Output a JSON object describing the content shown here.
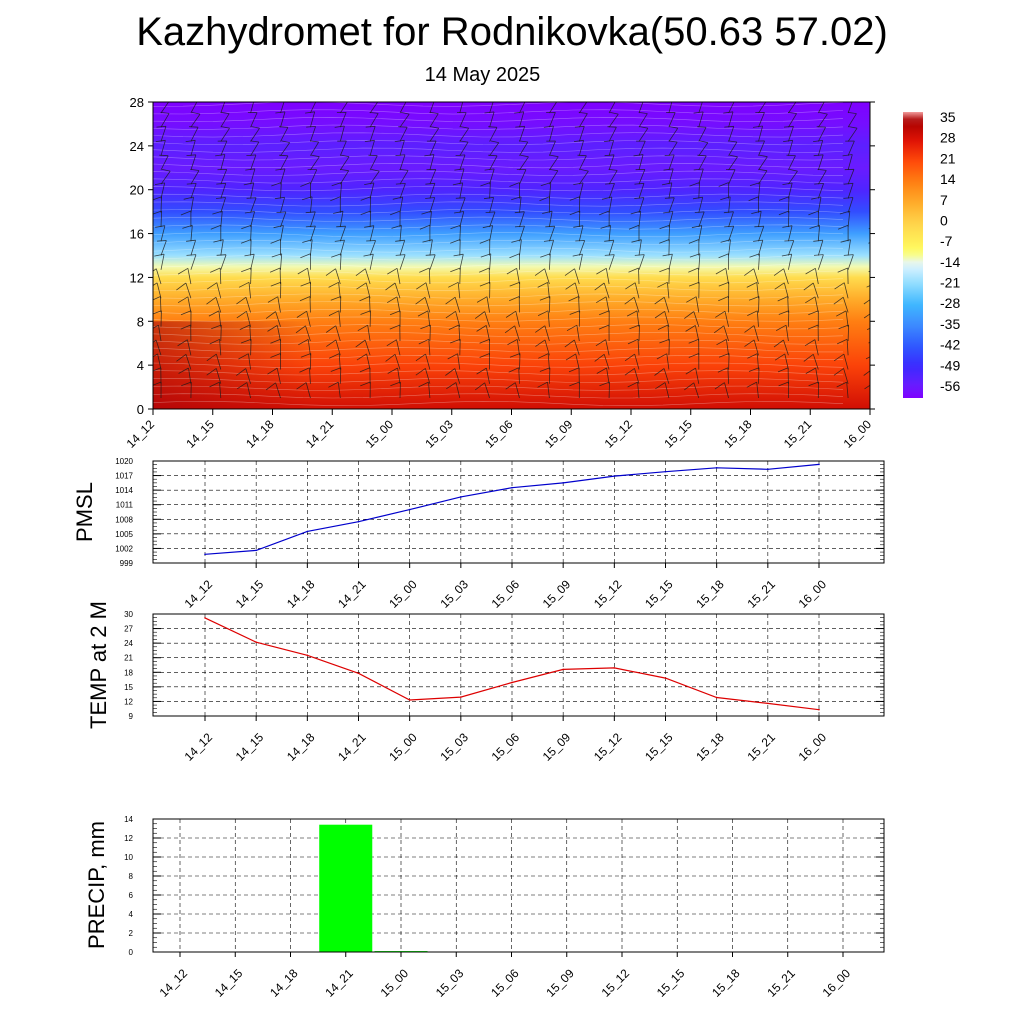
{
  "header": {
    "title": "Kazhydromet for Rodnikovka(50.63 57.02)",
    "date": "14 May 2025"
  },
  "chart_data": [
    {
      "type": "heatmap",
      "title": "Kazhydromet for Rodnikovka(50.63 57.02)",
      "subtitle": "14 May 2025",
      "x_ticks": [
        "14_12",
        "14_15",
        "14_18",
        "14_21",
        "15_00",
        "15_03",
        "15_06",
        "15_09",
        "15_12",
        "15_15",
        "15_18",
        "15_21",
        "16_00"
      ],
      "y_ticks": [
        0,
        4,
        8,
        12,
        16,
        20,
        24,
        28
      ],
      "ylim": [
        0,
        28
      ],
      "colorbar_labels": [
        35,
        28,
        21,
        14,
        7,
        0,
        -7,
        -14,
        -21,
        -28,
        -35,
        -42,
        -49,
        -56
      ],
      "colorbar_range": [
        -60,
        38
      ],
      "level_temperature_profile": [
        {
          "level": 0,
          "value": 30
        },
        {
          "level": 4,
          "value": 22
        },
        {
          "level": 8,
          "value": 14
        },
        {
          "level": 10,
          "value": 7
        },
        {
          "level": 12,
          "value": -2
        },
        {
          "level": 13,
          "value": -12
        },
        {
          "level": 14,
          "value": -20
        },
        {
          "level": 16,
          "value": -32
        },
        {
          "level": 18,
          "value": -44
        },
        {
          "level": 20,
          "value": -52
        },
        {
          "level": 22,
          "value": -56
        },
        {
          "level": 24,
          "value": -54
        },
        {
          "level": 26,
          "value": -58
        },
        {
          "level": 28,
          "value": -60
        }
      ],
      "wind_barbs": true
    },
    {
      "type": "line",
      "ylabel": "PMSL",
      "categories": [
        "14_12",
        "14_15",
        "14_18",
        "14_21",
        "15_00",
        "15_03",
        "15_06",
        "15_09",
        "15_12",
        "15_15",
        "15_18",
        "15_21",
        "16_00"
      ],
      "values": [
        1000.8,
        1001.6,
        1005.5,
        1007.5,
        1010.0,
        1012.6,
        1014.5,
        1015.5,
        1016.9,
        1017.8,
        1018.6,
        1018.3,
        1019.3
      ],
      "ylim": [
        999,
        1020
      ],
      "y_ticks": [
        999,
        1002,
        1005,
        1008,
        1011,
        1014,
        1017,
        1020
      ],
      "color": "#0000cc",
      "grid": true
    },
    {
      "type": "line",
      "ylabel": "TEMP at 2 M",
      "categories": [
        "14_12",
        "14_15",
        "14_18",
        "14_21",
        "15_00",
        "15_03",
        "15_06",
        "15_09",
        "15_12",
        "15_15",
        "15_18",
        "15_21",
        "16_00"
      ],
      "values": [
        29.2,
        24.2,
        21.5,
        17.8,
        12.3,
        12.9,
        15.9,
        18.6,
        18.9,
        16.8,
        12.8,
        11.6,
        10.3
      ],
      "ylim": [
        9,
        30
      ],
      "y_ticks": [
        9,
        12,
        15,
        18,
        21,
        24,
        27,
        30
      ],
      "color": "#dd0000",
      "grid": true
    },
    {
      "type": "bar",
      "ylabel": "PRECIP, mm",
      "categories": [
        "14_12",
        "14_15",
        "14_18",
        "14_21",
        "15_00",
        "15_03",
        "15_06",
        "15_09",
        "15_12",
        "15_15",
        "15_18",
        "15_21",
        "16_00"
      ],
      "values": [
        0,
        0,
        0,
        13.4,
        0.1,
        0,
        0,
        0,
        0,
        0,
        0,
        0,
        0
      ],
      "ylim": [
        0,
        14
      ],
      "y_ticks": [
        0,
        2,
        4,
        6,
        8,
        10,
        12,
        14
      ],
      "color": "#00ff00",
      "grid": true
    }
  ]
}
